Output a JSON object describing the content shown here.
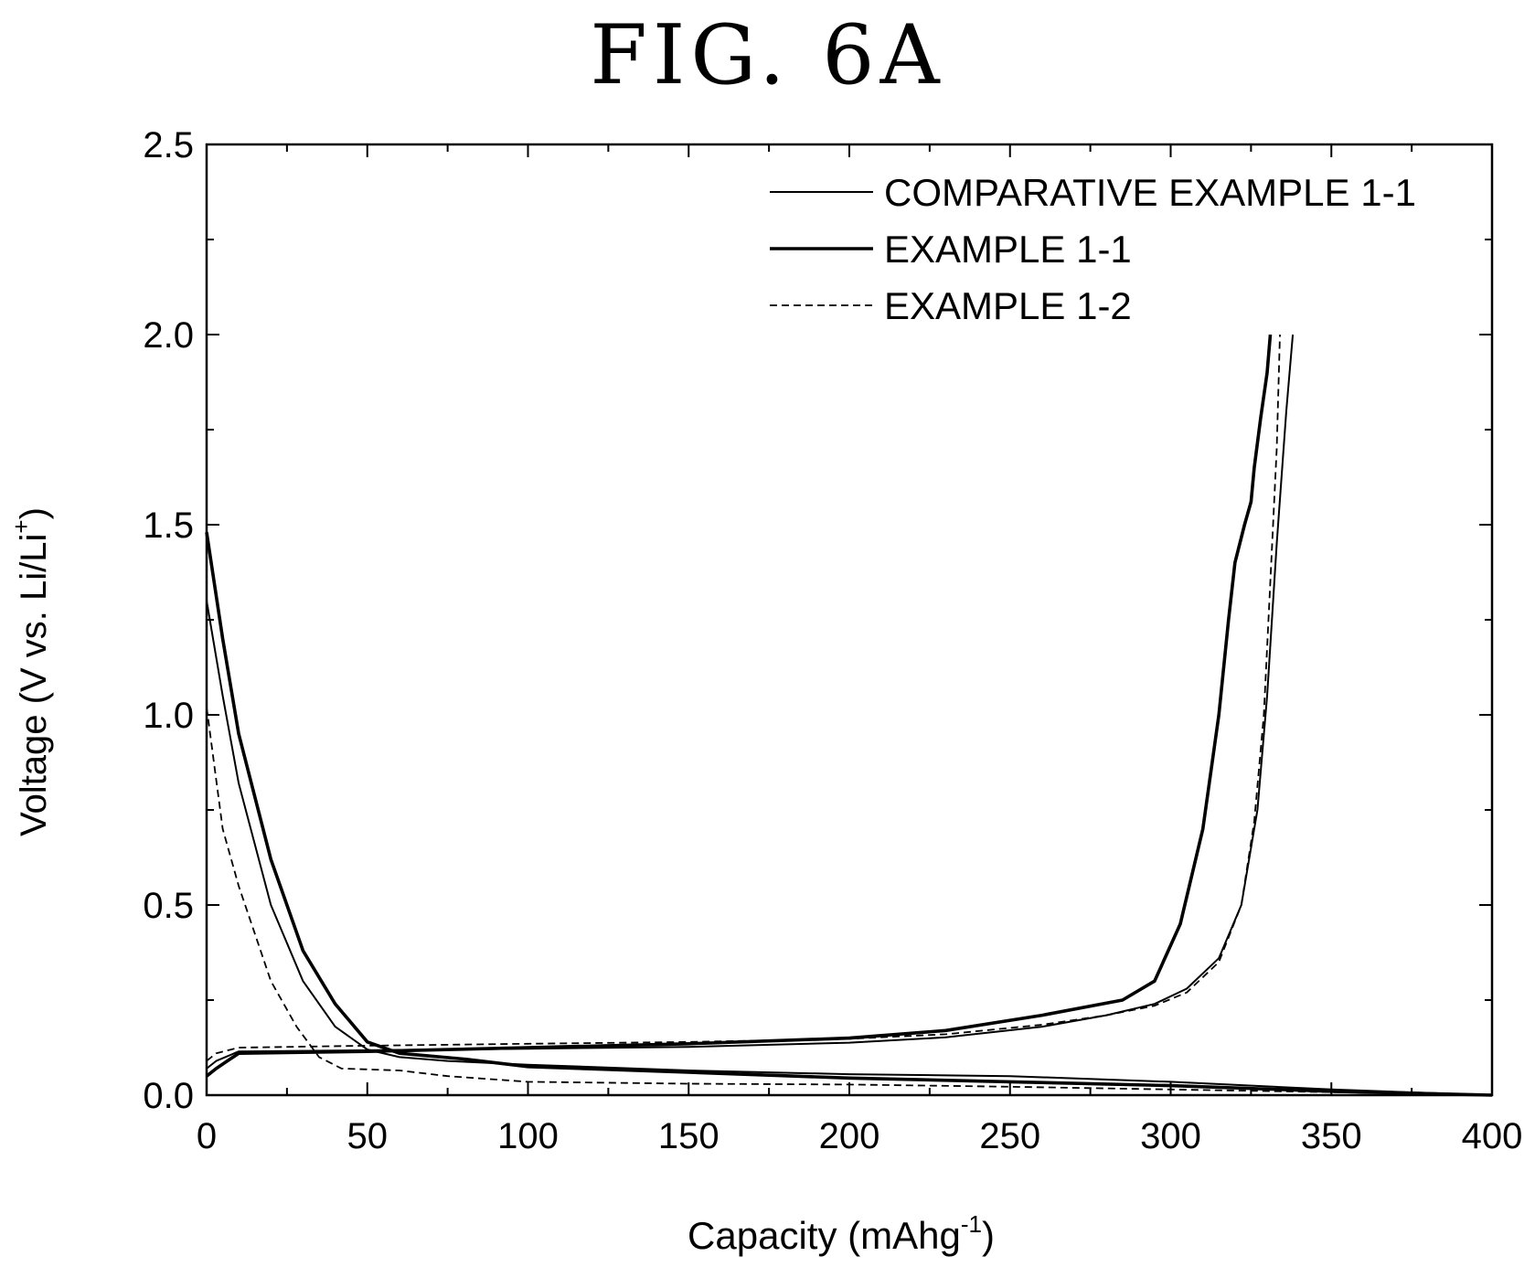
{
  "figure_label": "FIG. 6A",
  "chart_data": {
    "type": "line",
    "xlabel": "Capacity (mAhg",
    "xlabel_sup": "-1",
    "xlabel_tail": ")",
    "ylabel": "Voltage (V vs. Li/Li",
    "ylabel_sup": "+",
    "ylabel_tail": ")",
    "xlim": [
      0,
      400
    ],
    "ylim": [
      0,
      2.5
    ],
    "xticks": [
      "0",
      "50",
      "100",
      "150",
      "200",
      "250",
      "300",
      "350",
      "400"
    ],
    "yticks": [
      "0.0",
      "0.5",
      "1.0",
      "1.5",
      "2.0",
      "2.5"
    ],
    "grid": false,
    "legend_position": "top-right",
    "series": [
      {
        "name": "COMPARATIVE EXAMPLE 1-1",
        "style": "thin",
        "segments": [
          [
            [
              0,
              1.3
            ],
            [
              5,
              1.05
            ],
            [
              10,
              0.82
            ],
            [
              20,
              0.5
            ],
            [
              30,
              0.3
            ],
            [
              40,
              0.18
            ],
            [
              50,
              0.12
            ],
            [
              60,
              0.1
            ],
            [
              75,
              0.09
            ],
            [
              100,
              0.08
            ],
            [
              150,
              0.065
            ],
            [
              200,
              0.055
            ],
            [
              250,
              0.05
            ],
            [
              300,
              0.035
            ],
            [
              350,
              0.015
            ],
            [
              400,
              0
            ]
          ],
          [
            [
              0,
              0.07
            ],
            [
              3,
              0.09
            ],
            [
              10,
              0.115
            ],
            [
              50,
              0.118
            ],
            [
              100,
              0.122
            ],
            [
              150,
              0.127
            ],
            [
              200,
              0.138
            ],
            [
              230,
              0.152
            ],
            [
              260,
              0.18
            ],
            [
              280,
              0.21
            ],
            [
              295,
              0.24
            ],
            [
              305,
              0.28
            ],
            [
              315,
              0.36
            ],
            [
              322,
              0.5
            ],
            [
              327,
              0.75
            ],
            [
              330,
              1.05
            ],
            [
              333,
              1.45
            ],
            [
              336,
              1.8
            ],
            [
              338,
              2.0
            ]
          ]
        ]
      },
      {
        "name": "EXAMPLE 1-1",
        "style": "thick",
        "segments": [
          [
            [
              0,
              1.48
            ],
            [
              5,
              1.2
            ],
            [
              10,
              0.95
            ],
            [
              20,
              0.62
            ],
            [
              30,
              0.38
            ],
            [
              40,
              0.24
            ],
            [
              50,
              0.14
            ],
            [
              60,
              0.11
            ],
            [
              80,
              0.095
            ],
            [
              100,
              0.075
            ],
            [
              150,
              0.06
            ],
            [
              200,
              0.045
            ],
            [
              250,
              0.035
            ],
            [
              300,
              0.025
            ],
            [
              350,
              0.01
            ],
            [
              400,
              0
            ]
          ],
          [
            [
              0,
              0.05
            ],
            [
              3,
              0.07
            ],
            [
              10,
              0.11
            ],
            [
              50,
              0.115
            ],
            [
              100,
              0.125
            ],
            [
              150,
              0.135
            ],
            [
              200,
              0.15
            ],
            [
              230,
              0.17
            ],
            [
              260,
              0.21
            ],
            [
              285,
              0.25
            ],
            [
              295,
              0.3
            ],
            [
              303,
              0.45
            ],
            [
              310,
              0.7
            ],
            [
              315,
              1.0
            ],
            [
              318,
              1.25
            ],
            [
              320,
              1.4
            ],
            [
              323,
              1.5
            ],
            [
              325,
              1.56
            ],
            [
              326,
              1.65
            ],
            [
              328,
              1.78
            ],
            [
              330,
              1.9
            ],
            [
              331,
              2.0
            ]
          ]
        ]
      },
      {
        "name": "EXAMPLE 1-2",
        "style": "dashed",
        "segments": [
          [
            [
              0,
              1.02
            ],
            [
              5,
              0.7
            ],
            [
              10,
              0.55
            ],
            [
              20,
              0.3
            ],
            [
              28,
              0.18
            ],
            [
              35,
              0.1
            ],
            [
              42,
              0.07
            ],
            [
              60,
              0.065
            ],
            [
              75,
              0.05
            ],
            [
              100,
              0.035
            ],
            [
              150,
              0.03
            ],
            [
              200,
              0.028
            ],
            [
              250,
              0.022
            ],
            [
              300,
              0.015
            ],
            [
              350,
              0.008
            ],
            [
              400,
              0
            ]
          ],
          [
            [
              0,
              0.09
            ],
            [
              3,
              0.11
            ],
            [
              10,
              0.125
            ],
            [
              50,
              0.13
            ],
            [
              100,
              0.135
            ],
            [
              150,
              0.14
            ],
            [
              200,
              0.148
            ],
            [
              230,
              0.16
            ],
            [
              260,
              0.185
            ],
            [
              280,
              0.21
            ],
            [
              295,
              0.235
            ],
            [
              305,
              0.27
            ],
            [
              315,
              0.35
            ],
            [
              322,
              0.5
            ],
            [
              326,
              0.72
            ],
            [
              329,
              1.0
            ],
            [
              331,
              1.35
            ],
            [
              333,
              1.7
            ],
            [
              334,
              2.0
            ]
          ]
        ]
      }
    ]
  }
}
